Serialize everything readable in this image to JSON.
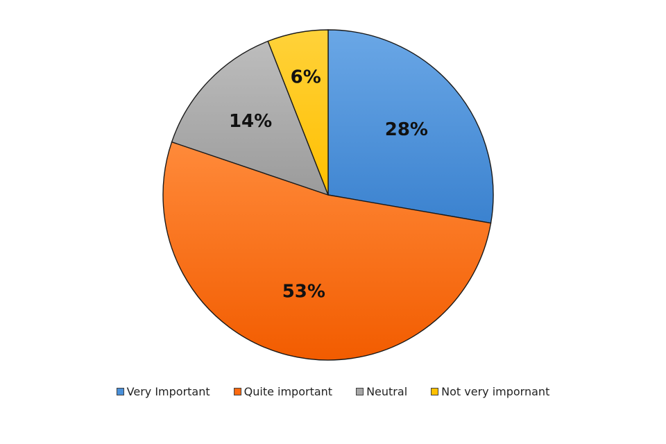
{
  "chart_data": {
    "type": "pie",
    "title": "",
    "categories": [
      "Very Important",
      "Quite important",
      "Neutral",
      "Not very impornant"
    ],
    "values": [
      28,
      53,
      14,
      6
    ],
    "labels": [
      "28%",
      "53%",
      "14%",
      "6%"
    ],
    "colors": [
      "#4a90d9",
      "#ff6a10",
      "#a6a6a6",
      "#ffc000"
    ],
    "legend_position": "bottom"
  }
}
